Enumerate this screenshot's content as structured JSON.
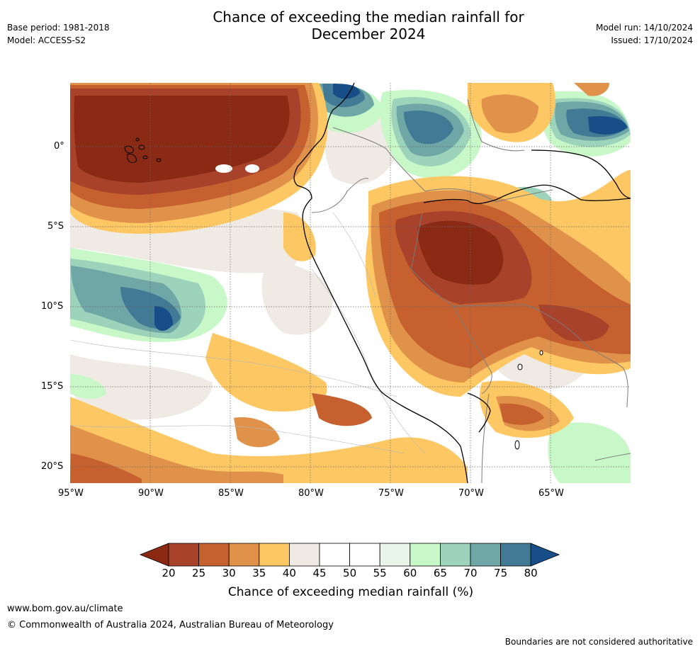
{
  "header": {
    "title_line1": "Chance of exceeding the median rainfall for",
    "title_line2": "December 2024",
    "base_period": "Base period: 1981-2018",
    "model": "Model: ACCESS-S2",
    "model_run": "Model run: 14/10/2024",
    "issued": "Issued: 17/10/2024"
  },
  "map": {
    "lat_labels": [
      "0°",
      "5°S",
      "10°S",
      "15°S",
      "20°S"
    ],
    "lon_labels": [
      "95°W",
      "90°W",
      "85°W",
      "80°W",
      "75°W",
      "70°W",
      "65°W"
    ],
    "palette": {
      "lt20": "#8b2a14",
      "20_25": "#a8422a",
      "25_30": "#c6612f",
      "30_35": "#e0924a",
      "35_40": "#fdc864",
      "40_45": "#efebe4",
      "45_55": "#ffffff",
      "55_60": "#e9f5e8",
      "60_65": "#c8f7c8",
      "65_70": "#9dd3bb",
      "70_75": "#6fa6a6",
      "75_80": "#427994",
      "gt80": "#174e88"
    }
  },
  "colorbar": {
    "colors": [
      "#8b2a14",
      "#a8422a",
      "#c6612f",
      "#e0924a",
      "#fdc864",
      "#efebe4",
      "#ffffff",
      "#ffffff",
      "#e9f5e8",
      "#c8f7c8",
      "#9dd3bb",
      "#6fa6a6",
      "#427994",
      "#174e88"
    ],
    "ticks": [
      "20",
      "25",
      "30",
      "35",
      "40",
      "45",
      "50",
      "55",
      "60",
      "65",
      "70",
      "75",
      "80"
    ],
    "label": "Chance of exceeding median rainfall (%)"
  },
  "footer": {
    "url": "www.bom.gov.au/climate",
    "copyright": "© Commonwealth of Australia 2024, Australian Bureau of Meteorology",
    "disclaimer": "Boundaries are not considered authoritative"
  }
}
